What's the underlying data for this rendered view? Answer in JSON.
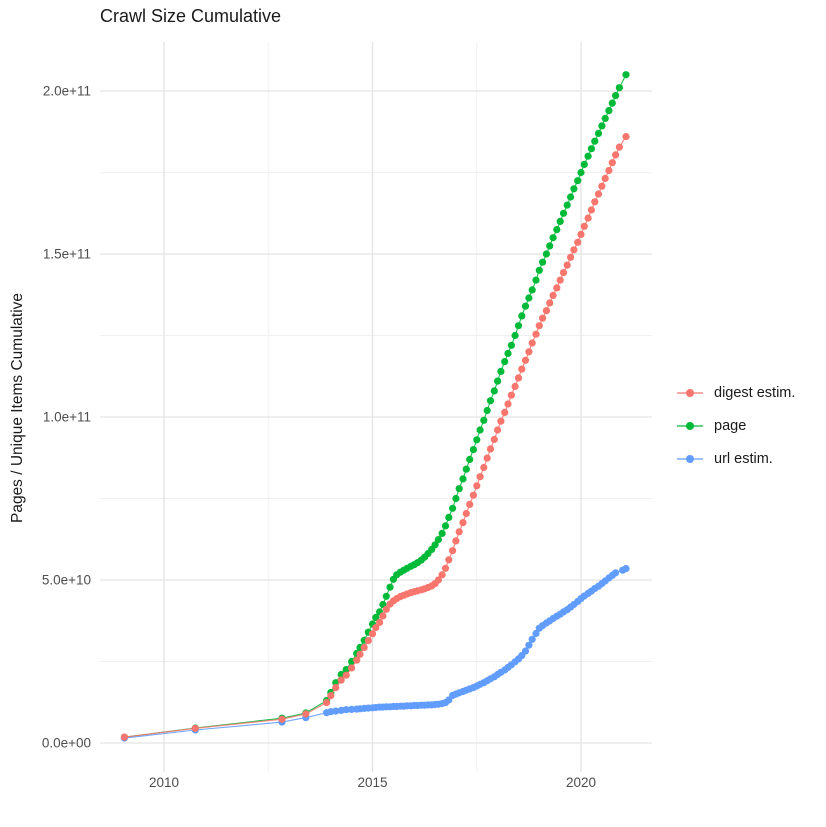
{
  "title": "Crawl Size Cumulative",
  "chart_data": {
    "type": "scatter",
    "title": "Crawl Size Cumulative",
    "xlabel": "",
    "ylabel": "Pages / Unique Items Cumulative",
    "value_unit": "items (value_e9 = billions, i.e. value x 1e9)",
    "xlim": [
      2008.45,
      2021.7
    ],
    "ylim_e9": [
      -10,
      215
    ],
    "grid": true,
    "legend_position": "right",
    "x_axis": {
      "ticks": [
        {
          "v": 2010,
          "label": "2010"
        },
        {
          "v": 2015,
          "label": "2015"
        },
        {
          "v": 2020,
          "label": "2020"
        }
      ],
      "minor": [
        2012.5,
        2017.5
      ]
    },
    "y_axis": {
      "ticks": [
        {
          "v_e9": 0,
          "label": "0.0e+00"
        },
        {
          "v_e9": 50,
          "label": "5.0e+10"
        },
        {
          "v_e9": 100,
          "label": "1.0e+11"
        },
        {
          "v_e9": 150,
          "label": "1.5e+11"
        },
        {
          "v_e9": 200,
          "label": "2.0e+11"
        }
      ],
      "minor_e9": [
        25,
        75,
        125,
        175
      ]
    },
    "colors": {
      "digest": "#F8766D",
      "page": "#00BA38",
      "url": "#619CFF",
      "grid_major": "#E3E3E3",
      "grid_minor": "#EFEFEF",
      "tick_text": "#4D4D4D"
    },
    "series": [
      {
        "name": "digest estim.",
        "color": "#F8766D",
        "points": [
          [
            2009.05,
            1.8
          ],
          [
            2010.75,
            4.5
          ],
          [
            2012.83,
            7.3
          ],
          [
            2013.4,
            8.9
          ],
          [
            2013.9,
            12.4
          ],
          [
            2014.0,
            14.5
          ],
          [
            2014.12,
            17.0
          ],
          [
            2014.25,
            19.3
          ],
          [
            2014.37,
            20.8
          ],
          [
            2014.5,
            23.0
          ],
          [
            2014.62,
            25.4
          ],
          [
            2014.7,
            27.2
          ],
          [
            2014.8,
            29.3
          ],
          [
            2014.9,
            31.4
          ],
          [
            2015.0,
            33.5
          ],
          [
            2015.08,
            35.4
          ],
          [
            2015.17,
            37.0
          ],
          [
            2015.25,
            39.0
          ],
          [
            2015.33,
            41.0
          ],
          [
            2015.42,
            42.6
          ],
          [
            2015.5,
            43.6
          ],
          [
            2015.58,
            44.3
          ],
          [
            2015.67,
            44.9
          ],
          [
            2015.75,
            45.3
          ],
          [
            2015.83,
            45.7
          ],
          [
            2015.92,
            46.1
          ],
          [
            2016.0,
            46.4
          ],
          [
            2016.08,
            46.7
          ],
          [
            2016.17,
            47.0
          ],
          [
            2016.25,
            47.3
          ],
          [
            2016.33,
            47.7
          ],
          [
            2016.42,
            48.2
          ],
          [
            2016.5,
            48.9
          ],
          [
            2016.58,
            50.0
          ],
          [
            2016.67,
            51.6
          ],
          [
            2016.75,
            53.6
          ],
          [
            2016.83,
            56.2
          ],
          [
            2016.92,
            59.0
          ],
          [
            2017.0,
            62.0
          ],
          [
            2017.08,
            64.8
          ],
          [
            2017.17,
            67.6
          ],
          [
            2017.25,
            70.4
          ],
          [
            2017.33,
            73.2
          ],
          [
            2017.42,
            76.0
          ],
          [
            2017.5,
            78.9
          ],
          [
            2017.58,
            81.7
          ],
          [
            2017.67,
            84.5
          ],
          [
            2017.75,
            87.4
          ],
          [
            2017.83,
            90.2
          ],
          [
            2017.92,
            93.1
          ],
          [
            2018.0,
            96.0
          ],
          [
            2018.08,
            98.7
          ],
          [
            2018.17,
            101.4
          ],
          [
            2018.25,
            104.0
          ],
          [
            2018.33,
            106.7
          ],
          [
            2018.42,
            109.4
          ],
          [
            2018.5,
            112.0
          ],
          [
            2018.58,
            114.7
          ],
          [
            2018.67,
            117.4
          ],
          [
            2018.75,
            120.0
          ],
          [
            2018.83,
            122.7
          ],
          [
            2018.92,
            125.4
          ],
          [
            2019.0,
            128.0
          ],
          [
            2019.08,
            130.3
          ],
          [
            2019.17,
            132.6
          ],
          [
            2019.25,
            135.0
          ],
          [
            2019.33,
            137.3
          ],
          [
            2019.42,
            139.6
          ],
          [
            2019.5,
            142.0
          ],
          [
            2019.58,
            144.3
          ],
          [
            2019.67,
            146.6
          ],
          [
            2019.75,
            149.0
          ],
          [
            2019.83,
            151.3
          ],
          [
            2019.92,
            153.6
          ],
          [
            2020.0,
            156.0
          ],
          [
            2020.08,
            158.5
          ],
          [
            2020.17,
            161.0
          ],
          [
            2020.25,
            163.5
          ],
          [
            2020.33,
            166.0
          ],
          [
            2020.42,
            168.4
          ],
          [
            2020.5,
            170.8
          ],
          [
            2020.58,
            173.2
          ],
          [
            2020.67,
            175.6
          ],
          [
            2020.75,
            178.0
          ],
          [
            2020.83,
            180.4
          ],
          [
            2020.92,
            182.8
          ],
          [
            2021.08,
            186.0
          ]
        ]
      },
      {
        "name": "page",
        "color": "#00BA38",
        "points": [
          [
            2009.05,
            1.8
          ],
          [
            2010.75,
            4.6
          ],
          [
            2012.83,
            7.6
          ],
          [
            2013.4,
            9.2
          ],
          [
            2013.9,
            13.0
          ],
          [
            2014.0,
            15.5
          ],
          [
            2014.12,
            18.5
          ],
          [
            2014.25,
            21.0
          ],
          [
            2014.37,
            22.5
          ],
          [
            2014.5,
            25.0
          ],
          [
            2014.62,
            27.5
          ],
          [
            2014.7,
            29.3
          ],
          [
            2014.8,
            31.5
          ],
          [
            2014.9,
            34.0
          ],
          [
            2015.0,
            36.5
          ],
          [
            2015.08,
            38.5
          ],
          [
            2015.17,
            40.2
          ],
          [
            2015.25,
            42.5
          ],
          [
            2015.33,
            45.0
          ],
          [
            2015.42,
            47.8
          ],
          [
            2015.5,
            50.2
          ],
          [
            2015.58,
            51.6
          ],
          [
            2015.67,
            52.4
          ],
          [
            2015.75,
            53.0
          ],
          [
            2015.83,
            53.6
          ],
          [
            2015.92,
            54.2
          ],
          [
            2016.0,
            54.7
          ],
          [
            2016.08,
            55.3
          ],
          [
            2016.17,
            56.1
          ],
          [
            2016.25,
            57.0
          ],
          [
            2016.33,
            58.1
          ],
          [
            2016.42,
            59.4
          ],
          [
            2016.5,
            60.8
          ],
          [
            2016.58,
            62.4
          ],
          [
            2016.67,
            64.3
          ],
          [
            2016.75,
            66.6
          ],
          [
            2016.83,
            69.2
          ],
          [
            2016.92,
            72.0
          ],
          [
            2017.0,
            75.0
          ],
          [
            2017.08,
            78.0
          ],
          [
            2017.17,
            81.0
          ],
          [
            2017.25,
            84.0
          ],
          [
            2017.33,
            87.0
          ],
          [
            2017.42,
            90.0
          ],
          [
            2017.5,
            93.0
          ],
          [
            2017.58,
            96.0
          ],
          [
            2017.67,
            99.0
          ],
          [
            2017.75,
            102.0
          ],
          [
            2017.83,
            105.0
          ],
          [
            2017.92,
            108.0
          ],
          [
            2018.0,
            111.0
          ],
          [
            2018.08,
            114.0
          ],
          [
            2018.17,
            117.0
          ],
          [
            2018.25,
            119.5
          ],
          [
            2018.33,
            122.0
          ],
          [
            2018.42,
            125.0
          ],
          [
            2018.5,
            128.0
          ],
          [
            2018.58,
            131.0
          ],
          [
            2018.67,
            134.0
          ],
          [
            2018.75,
            136.5
          ],
          [
            2018.83,
            139.0
          ],
          [
            2018.92,
            142.0
          ],
          [
            2019.0,
            145.0
          ],
          [
            2019.08,
            147.5
          ],
          [
            2019.17,
            150.0
          ],
          [
            2019.25,
            152.5
          ],
          [
            2019.33,
            155.0
          ],
          [
            2019.42,
            157.5
          ],
          [
            2019.5,
            160.0
          ],
          [
            2019.58,
            162.5
          ],
          [
            2019.67,
            165.0
          ],
          [
            2019.75,
            167.5
          ],
          [
            2019.83,
            170.0
          ],
          [
            2019.92,
            172.5
          ],
          [
            2020.0,
            175.0
          ],
          [
            2020.08,
            177.5
          ],
          [
            2020.17,
            180.0
          ],
          [
            2020.25,
            182.3
          ],
          [
            2020.33,
            184.6
          ],
          [
            2020.42,
            187.0
          ],
          [
            2020.5,
            189.3
          ],
          [
            2020.58,
            191.6
          ],
          [
            2020.67,
            194.0
          ],
          [
            2020.75,
            196.3
          ],
          [
            2020.83,
            198.6
          ],
          [
            2020.92,
            201.0
          ],
          [
            2021.08,
            205.0
          ]
        ]
      },
      {
        "name": "url estim.",
        "color": "#619CFF",
        "points": [
          [
            2009.05,
            1.5
          ],
          [
            2010.75,
            4.0
          ],
          [
            2012.83,
            6.4
          ],
          [
            2013.4,
            7.8
          ],
          [
            2013.9,
            9.3
          ],
          [
            2014.0,
            9.6
          ],
          [
            2014.12,
            9.8
          ],
          [
            2014.25,
            10.0
          ],
          [
            2014.37,
            10.2
          ],
          [
            2014.5,
            10.3
          ],
          [
            2014.62,
            10.4
          ],
          [
            2014.7,
            10.5
          ],
          [
            2014.8,
            10.6
          ],
          [
            2014.9,
            10.7
          ],
          [
            2015.0,
            10.8
          ],
          [
            2015.08,
            10.9
          ],
          [
            2015.17,
            11.0
          ],
          [
            2015.25,
            11.0
          ],
          [
            2015.33,
            11.1
          ],
          [
            2015.42,
            11.1
          ],
          [
            2015.5,
            11.2
          ],
          [
            2015.58,
            11.2
          ],
          [
            2015.67,
            11.3
          ],
          [
            2015.75,
            11.3
          ],
          [
            2015.83,
            11.4
          ],
          [
            2015.92,
            11.4
          ],
          [
            2016.0,
            11.5
          ],
          [
            2016.08,
            11.5
          ],
          [
            2016.17,
            11.6
          ],
          [
            2016.25,
            11.6
          ],
          [
            2016.33,
            11.7
          ],
          [
            2016.42,
            11.7
          ],
          [
            2016.5,
            11.8
          ],
          [
            2016.58,
            11.9
          ],
          [
            2016.67,
            12.1
          ],
          [
            2016.75,
            12.4
          ],
          [
            2016.83,
            13.2
          ],
          [
            2016.92,
            14.6
          ],
          [
            2017.0,
            15.0
          ],
          [
            2017.08,
            15.4
          ],
          [
            2017.17,
            15.8
          ],
          [
            2017.25,
            16.2
          ],
          [
            2017.33,
            16.6
          ],
          [
            2017.42,
            17.0
          ],
          [
            2017.5,
            17.5
          ],
          [
            2017.58,
            18.0
          ],
          [
            2017.67,
            18.5
          ],
          [
            2017.75,
            19.1
          ],
          [
            2017.83,
            19.7
          ],
          [
            2017.92,
            20.3
          ],
          [
            2018.0,
            21.0
          ],
          [
            2018.08,
            21.7
          ],
          [
            2018.17,
            22.4
          ],
          [
            2018.25,
            23.2
          ],
          [
            2018.33,
            24.0
          ],
          [
            2018.42,
            24.9
          ],
          [
            2018.5,
            25.8
          ],
          [
            2018.58,
            26.8
          ],
          [
            2018.67,
            28.2
          ],
          [
            2018.75,
            30.0
          ],
          [
            2018.83,
            31.8
          ],
          [
            2018.92,
            33.6
          ],
          [
            2019.0,
            35.2
          ],
          [
            2019.08,
            36.0
          ],
          [
            2019.17,
            36.8
          ],
          [
            2019.25,
            37.5
          ],
          [
            2019.33,
            38.2
          ],
          [
            2019.42,
            38.9
          ],
          [
            2019.5,
            39.5
          ],
          [
            2019.58,
            40.2
          ],
          [
            2019.67,
            40.9
          ],
          [
            2019.75,
            41.7
          ],
          [
            2019.83,
            42.5
          ],
          [
            2019.92,
            43.4
          ],
          [
            2020.0,
            44.3
          ],
          [
            2020.08,
            45.1
          ],
          [
            2020.17,
            45.9
          ],
          [
            2020.25,
            46.6
          ],
          [
            2020.33,
            47.4
          ],
          [
            2020.42,
            48.1
          ],
          [
            2020.5,
            48.9
          ],
          [
            2020.58,
            49.7
          ],
          [
            2020.67,
            50.6
          ],
          [
            2020.75,
            51.4
          ],
          [
            2020.83,
            52.2
          ],
          [
            2021.0,
            53.0
          ],
          [
            2021.08,
            53.5
          ]
        ]
      }
    ]
  },
  "legend": {
    "items": [
      {
        "label": "digest estim."
      },
      {
        "label": "page"
      },
      {
        "label": "url estim."
      }
    ]
  }
}
